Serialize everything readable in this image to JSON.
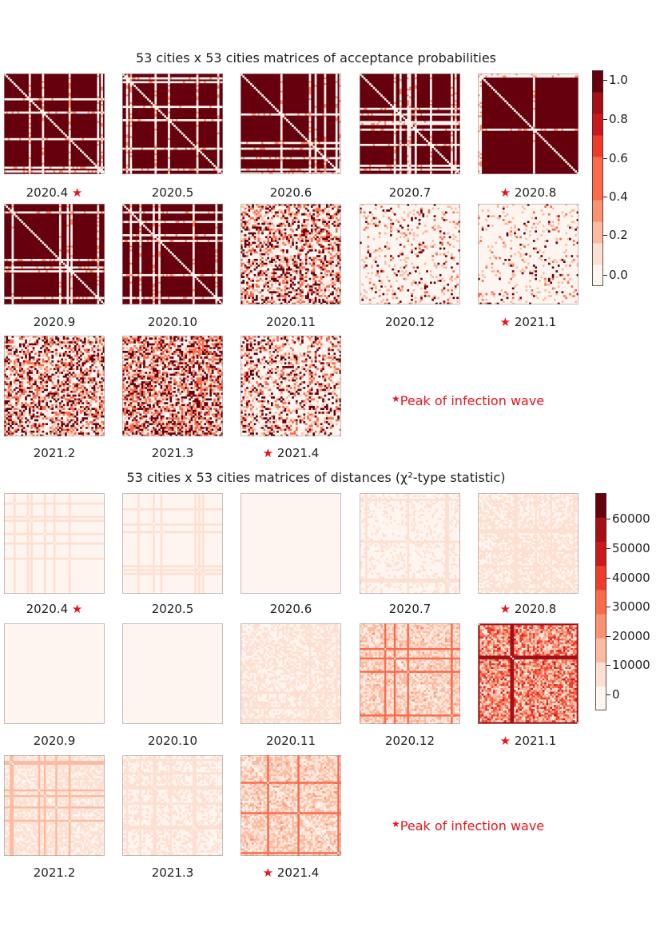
{
  "title_top": "53 cities x 53 cities matrices of acceptance probabilities",
  "title_bottom": "53 cities x 53 cities matrices of distances (χ²-type statistic)",
  "peak_star": "★",
  "peak_note": "Peak of infection wave",
  "colors": {
    "scale": [
      "#fff5f0",
      "#fee0d2",
      "#fcbba1",
      "#fc9272",
      "#fb6a4a",
      "#ef3b2c",
      "#cb181d",
      "#a50f15",
      "#67000d"
    ],
    "star": "#e8141e"
  },
  "chart_data": [
    {
      "type": "heatmap",
      "title": "53 cities x 53 cities matrices of acceptance probabilities",
      "matrix_size": 53,
      "value_range": [
        0,
        1.0
      ],
      "colorbar_ticks": [
        "1.0",
        "0.8",
        "0.6",
        "0.4",
        "0.2",
        "0.0"
      ],
      "colorbar_levels": 10,
      "panels": [
        {
          "label": "2020.4",
          "peak": "after",
          "level": 0.92,
          "sparse": false
        },
        {
          "label": "2020.5",
          "peak": "none",
          "level": 0.88,
          "sparse": false
        },
        {
          "label": "2020.6",
          "peak": "none",
          "level": 0.97,
          "sparse": false
        },
        {
          "label": "2020.7",
          "peak": "none",
          "level": 0.85,
          "sparse": false
        },
        {
          "label": "2020.8",
          "peak": "before",
          "level": 0.7,
          "sparse": false
        },
        {
          "label": "2020.9",
          "peak": "none",
          "level": 0.9,
          "sparse": false
        },
        {
          "label": "2020.10",
          "peak": "none",
          "level": 0.85,
          "sparse": false
        },
        {
          "label": "2020.11",
          "peak": "none",
          "level": 0.35,
          "sparse": true
        },
        {
          "label": "2020.12",
          "peak": "none",
          "level": 0.08,
          "sparse": true
        },
        {
          "label": "2021.1",
          "peak": "before",
          "level": 0.05,
          "sparse": true
        },
        {
          "label": "2021.2",
          "peak": "none",
          "level": 0.4,
          "sparse": true
        },
        {
          "label": "2021.3",
          "peak": "none",
          "level": 0.5,
          "sparse": true
        },
        {
          "label": "2021.4",
          "peak": "before",
          "level": 0.25,
          "sparse": true
        }
      ]
    },
    {
      "type": "heatmap",
      "title": "53 cities x 53 cities matrices of distances (χ²-type statistic)",
      "matrix_size": 53,
      "value_range": [
        0,
        65000
      ],
      "colorbar_ticks": [
        "60000",
        "50000",
        "40000",
        "30000",
        "20000",
        "10000",
        "0"
      ],
      "colorbar_levels": 9,
      "panels": [
        {
          "label": "2020.4",
          "peak": "after",
          "level": 0.03
        },
        {
          "label": "2020.5",
          "peak": "none",
          "level": 0.03
        },
        {
          "label": "2020.6",
          "peak": "none",
          "level": 0.02
        },
        {
          "label": "2020.7",
          "peak": "none",
          "level": 0.05
        },
        {
          "label": "2020.8",
          "peak": "before",
          "level": 0.08
        },
        {
          "label": "2020.9",
          "peak": "none",
          "level": 0.02
        },
        {
          "label": "2020.10",
          "peak": "none",
          "level": 0.01
        },
        {
          "label": "2020.11",
          "peak": "none",
          "level": 0.08
        },
        {
          "label": "2020.12",
          "peak": "none",
          "level": 0.2
        },
        {
          "label": "2021.1",
          "peak": "before",
          "level": 0.45
        },
        {
          "label": "2021.2",
          "peak": "none",
          "level": 0.1
        },
        {
          "label": "2021.3",
          "peak": "none",
          "level": 0.06
        },
        {
          "label": "2021.4",
          "peak": "before",
          "level": 0.2
        }
      ]
    }
  ]
}
